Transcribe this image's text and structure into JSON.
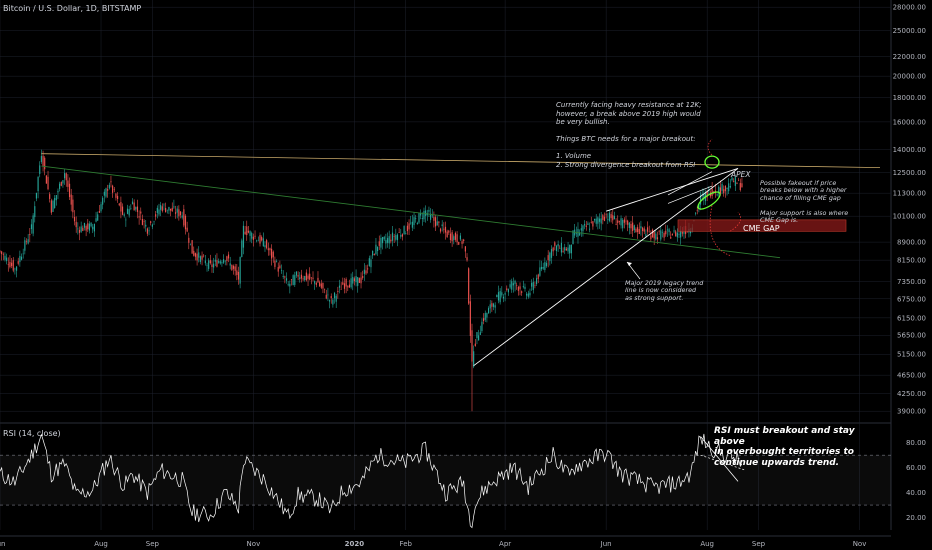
{
  "header": {
    "title": "Bitcoin / U.S. Dollar, 1D, BITSTAMP",
    "rsi_title": "RSI (14, close)"
  },
  "colors": {
    "background": "#000000",
    "up": "#26a69a",
    "down": "#ef5350",
    "grid": "#1e222d",
    "axis_text": "#b2b5be",
    "resistance_line": "#c8a96a",
    "legacy_trend_line": "#2f7d32",
    "wedge_lines": "#ffffff",
    "cme_gap": "#8b1a1a",
    "ellipse": "#66ff33",
    "rsi_line": "#ffffff"
  },
  "annotations": {
    "resistance_note": "Currently facing heavy resistance at 12K;\nhowever, a break above 2019 high would\nbe very bullish.\n\nThings BTC needs for a major breakout:\n\n1. Volume\n2. Strong divergence breakout from RSI",
    "apex_label": "APEX",
    "fakeout_note": "Possible fakeout if price\nbreaks below with a higher\nchance of filling CME gap\n\nMajor support is also where\nCME Gap is.",
    "cme_gap_label": "CME GAP",
    "legacy_note": "Major 2019 legacy trend\nline is now considered\nas strong support.",
    "rsi_note": "RSI must breakout and stay above\nin overbought territories to\ncontinue upwards trend."
  },
  "chart_data": [
    {
      "type": "candlestick",
      "title": "Bitcoin / U.S. Dollar, 1D, BITSTAMP",
      "y_scale": "log",
      "ylim": [
        3700,
        29000
      ],
      "y_ticks": [
        "28000.00",
        "25000.00",
        "22000.00",
        "20000.00",
        "18000.00",
        "16000.00",
        "14000.00",
        "12500.00",
        "11300.00",
        "10100.00",
        "8900.00",
        "8150.00",
        "7350.00",
        "6750.00",
        "6150.00",
        "5650.00",
        "5150.00",
        "4650.00",
        "4250.00",
        "3900.00"
      ],
      "x_ticks": [
        "Jun",
        "Aug",
        "Sep",
        "Nov",
        "2020",
        "Feb",
        "Apr",
        "Jun",
        "Aug",
        "Sep",
        "Nov"
      ],
      "x_range": [
        "2019-06-01",
        "2020-11-20"
      ],
      "price_path": [
        [
          "2019-06-01",
          8500
        ],
        [
          "2019-06-10",
          7800
        ],
        [
          "2019-06-20",
          9500
        ],
        [
          "2019-06-26",
          13800
        ],
        [
          "2019-07-02",
          10500
        ],
        [
          "2019-07-10",
          12500
        ],
        [
          "2019-07-17",
          9500
        ],
        [
          "2019-07-27",
          9600
        ],
        [
          "2019-08-06",
          11900
        ],
        [
          "2019-08-15",
          10000
        ],
        [
          "2019-08-20",
          10800
        ],
        [
          "2019-08-29",
          9500
        ],
        [
          "2019-09-06",
          10600
        ],
        [
          "2019-09-19",
          10200
        ],
        [
          "2019-09-25",
          8500
        ],
        [
          "2019-10-06",
          7900
        ],
        [
          "2019-10-15",
          8300
        ],
        [
          "2019-10-23",
          7450
        ],
        [
          "2019-10-26",
          9500
        ],
        [
          "2019-11-08",
          8800
        ],
        [
          "2019-11-22",
          7200
        ],
        [
          "2019-11-28",
          7600
        ],
        [
          "2019-12-10",
          7300
        ],
        [
          "2019-12-18",
          6650
        ],
        [
          "2019-12-25",
          7250
        ],
        [
          "2020-01-05",
          7400
        ],
        [
          "2020-01-15",
          8800
        ],
        [
          "2020-01-31",
          9400
        ],
        [
          "2020-02-13",
          10350
        ],
        [
          "2020-02-25",
          9300
        ],
        [
          "2020-03-07",
          8900
        ],
        [
          "2020-03-09",
          7950
        ],
        [
          "2020-03-12",
          4850
        ],
        [
          "2020-03-13",
          5350
        ],
        [
          "2020-03-19",
          6150
        ],
        [
          "2020-03-26",
          6700
        ],
        [
          "2020-04-06",
          7300
        ],
        [
          "2020-04-15",
          6900
        ],
        [
          "2020-04-30",
          8700
        ],
        [
          "2020-05-10",
          8600
        ],
        [
          "2020-05-12",
          9200
        ],
        [
          "2020-06-01",
          10150
        ],
        [
          "2020-06-10",
          9750
        ],
        [
          "2020-06-30",
          9200
        ],
        [
          "2020-07-15",
          9300
        ],
        [
          "2020-07-22",
          9550
        ],
        [
          "2020-07-28",
          11000
        ],
        [
          "2020-08-03",
          11400
        ],
        [
          "2020-08-12",
          11600
        ],
        [
          "2020-08-17",
          12000
        ],
        [
          "2020-08-22",
          11700
        ]
      ],
      "price_lows": [
        [
          "2020-03-12",
          3900
        ]
      ]
    },
    {
      "type": "line",
      "title": "RSI (14, close)",
      "ylim": [
        10,
        95
      ],
      "y_ticks": [
        "80.00",
        "60.00",
        "40.00",
        "20.00"
      ],
      "bands": [
        70,
        30
      ],
      "series": [
        {
          "points": [
            [
              "2019-06-01",
              55
            ],
            [
              "2019-06-10",
              48
            ],
            [
              "2019-06-20",
              70
            ],
            [
              "2019-06-26",
              86
            ],
            [
              "2019-07-02",
              55
            ],
            [
              "2019-07-10",
              63
            ],
            [
              "2019-07-17",
              38
            ],
            [
              "2019-07-27",
              42
            ],
            [
              "2019-08-06",
              68
            ],
            [
              "2019-08-15",
              45
            ],
            [
              "2019-08-20",
              55
            ],
            [
              "2019-08-29",
              40
            ],
            [
              "2019-09-06",
              58
            ],
            [
              "2019-09-19",
              50
            ],
            [
              "2019-09-25",
              24
            ],
            [
              "2019-10-06",
              22
            ],
            [
              "2019-10-15",
              40
            ],
            [
              "2019-10-23",
              28
            ],
            [
              "2019-10-26",
              66
            ],
            [
              "2019-11-08",
              50
            ],
            [
              "2019-11-22",
              21
            ],
            [
              "2019-11-28",
              38
            ],
            [
              "2019-12-10",
              35
            ],
            [
              "2019-12-18",
              25
            ],
            [
              "2019-12-25",
              42
            ],
            [
              "2020-01-05",
              48
            ],
            [
              "2020-01-15",
              70
            ],
            [
              "2020-01-31",
              63
            ],
            [
              "2020-02-13",
              74
            ],
            [
              "2020-02-25",
              40
            ],
            [
              "2020-03-07",
              48
            ],
            [
              "2020-03-09",
              30
            ],
            [
              "2020-03-12",
              15
            ],
            [
              "2020-03-13",
              28
            ],
            [
              "2020-03-19",
              42
            ],
            [
              "2020-03-26",
              50
            ],
            [
              "2020-04-06",
              60
            ],
            [
              "2020-04-15",
              45
            ],
            [
              "2020-04-30",
              70
            ],
            [
              "2020-05-10",
              52
            ],
            [
              "2020-05-12",
              60
            ],
            [
              "2020-06-01",
              72
            ],
            [
              "2020-06-10",
              55
            ],
            [
              "2020-06-30",
              44
            ],
            [
              "2020-07-15",
              48
            ],
            [
              "2020-07-22",
              55
            ],
            [
              "2020-07-28",
              84
            ],
            [
              "2020-08-03",
              76
            ],
            [
              "2020-08-12",
              70
            ],
            [
              "2020-08-17",
              68
            ],
            [
              "2020-08-22",
              62
            ]
          ]
        }
      ]
    }
  ]
}
